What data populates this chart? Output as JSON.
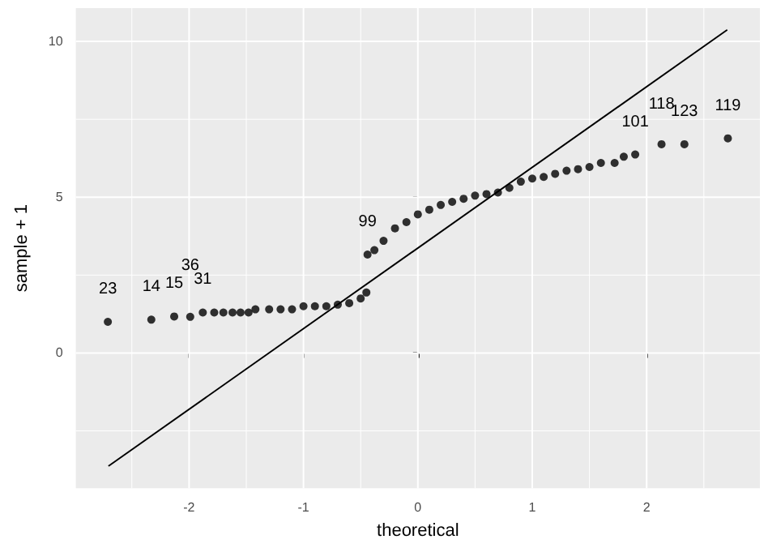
{
  "chart_data": {
    "type": "scatter",
    "xlabel": "theoretical",
    "ylabel": "sample + 1",
    "xlim": [
      -2.99,
      2.99
    ],
    "ylim": [
      -4.34,
      11.07
    ],
    "xticks": [
      {
        "value": -2.5,
        "label": null
      },
      -2,
      {
        "value": -1.5,
        "label": null
      },
      -1,
      {
        "value": -0.5,
        "label": null
      },
      0,
      {
        "value": 0.5,
        "label": null
      },
      1,
      {
        "value": 1.5,
        "label": null
      },
      2,
      {
        "value": 2.5,
        "label": null
      }
    ],
    "yticks": [
      {
        "value": -2.5,
        "label": null
      },
      0,
      {
        "value": 2.5,
        "label": null
      },
      5,
      {
        "value": 7.5,
        "label": null
      },
      10
    ],
    "grid": true,
    "marker": "circle",
    "series": [
      {
        "type": "scatter",
        "color": "#000000",
        "x": [
          -2.71,
          -2.33,
          -2.13,
          -1.99,
          -1.88,
          -1.78,
          -1.7,
          -1.62,
          -1.55,
          -1.48,
          -1.42,
          -1.3,
          -1.2,
          -1.1,
          -1.0,
          -0.9,
          -0.8,
          -0.7,
          -0.6,
          -0.5,
          -0.45,
          -0.44,
          -0.38,
          -0.3,
          -0.2,
          -0.1,
          0,
          0.1,
          0.2,
          0.3,
          0.4,
          0.5,
          0.6,
          0.7,
          0.8,
          0.9,
          1.0,
          1.1,
          1.2,
          1.3,
          1.4,
          1.5,
          1.6,
          1.72,
          1.8,
          1.9,
          2.13,
          2.33,
          2.71
        ],
        "values": [
          1.0,
          1.07,
          1.17,
          1.16,
          1.3,
          1.3,
          1.3,
          1.3,
          1.3,
          1.3,
          1.4,
          1.4,
          1.4,
          1.4,
          1.5,
          1.5,
          1.5,
          1.55,
          1.6,
          1.75,
          1.94,
          3.16,
          3.3,
          3.6,
          4.0,
          4.2,
          4.45,
          4.6,
          4.75,
          4.85,
          4.95,
          5.05,
          5.1,
          5.15,
          5.3,
          5.5,
          5.6,
          5.65,
          5.75,
          5.85,
          5.9,
          5.97,
          6.1,
          6.1,
          6.3,
          6.37,
          6.7,
          6.7,
          6.89
        ]
      },
      {
        "type": "line",
        "color": "#000000",
        "marker": "none",
        "line_style": "solid",
        "x": [
          -2.7,
          2.7
        ],
        "values": [
          -3.62,
          10.36
        ]
      }
    ],
    "annotations": [
      {
        "text": "23",
        "x": -2.71,
        "y": 1.0
      },
      {
        "text": "14",
        "x": -2.33,
        "y": 1.07
      },
      {
        "text": "15",
        "x": -2.13,
        "y": 1.17
      },
      {
        "text": "36",
        "x": -1.99,
        "y": 1.16
      },
      {
        "text": "31",
        "x": -1.88,
        "y": 1.3
      },
      {
        "text": "99",
        "x": -0.44,
        "y": 3.16
      },
      {
        "text": "101",
        "x": 1.9,
        "y": 6.37
      },
      {
        "text": "118",
        "x": 2.13,
        "y": 6.7
      },
      {
        "text": "123",
        "x": 2.33,
        "y": 6.7
      },
      {
        "text": "119",
        "x": 2.71,
        "y": 6.89
      }
    ]
  }
}
